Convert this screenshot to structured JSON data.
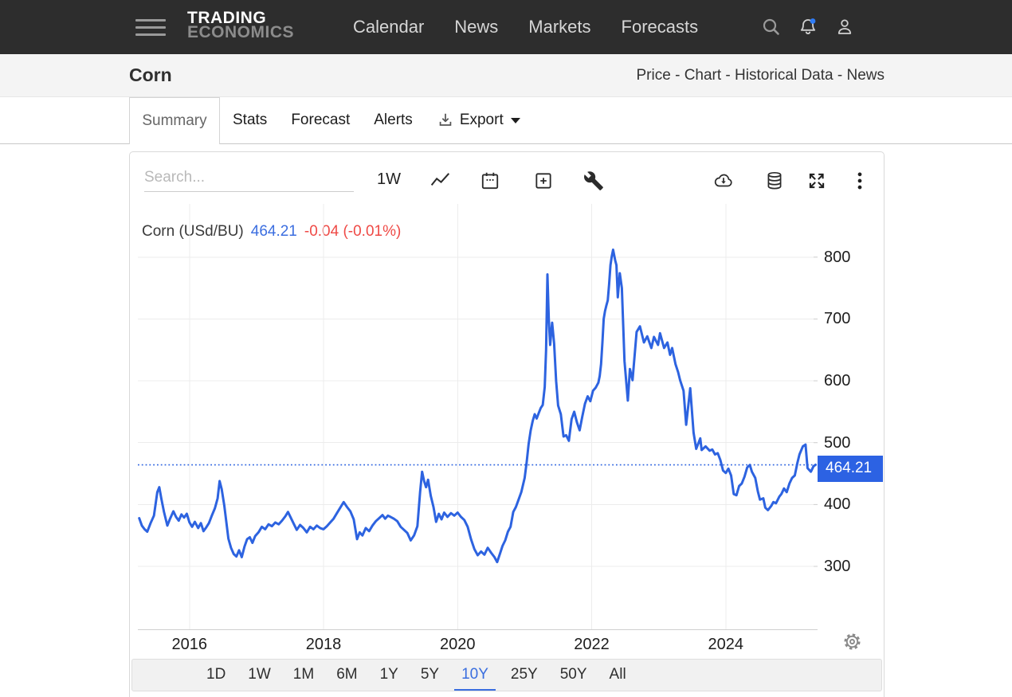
{
  "navbar": {
    "brand_line1": "TRADING",
    "brand_line2": "ECONOMICS",
    "items": [
      "Calendar",
      "News",
      "Markets",
      "Forecasts"
    ]
  },
  "subheader": {
    "title": "Corn",
    "links": [
      "Price",
      "Chart",
      "Historical Data",
      "News"
    ],
    "separator": " - "
  },
  "tabs": {
    "active": "Summary",
    "items": [
      "Stats",
      "Forecast",
      "Alerts"
    ],
    "export_label": "Export"
  },
  "toolbar": {
    "search_placeholder": "Search...",
    "interval_label": "1W"
  },
  "range_selector": {
    "options": [
      "1D",
      "1W",
      "1M",
      "6M",
      "1Y",
      "5Y",
      "10Y",
      "25Y",
      "50Y",
      "All"
    ],
    "active": "10Y"
  },
  "colors": {
    "line_blue": "#2d63e0",
    "badge_blue": "#2c62e3",
    "change_red": "#ef4a46",
    "grid": "#ececec",
    "axis": "#cfcfcf"
  },
  "chart_data": {
    "type": "line",
    "title": "Corn (USd/BU)",
    "last_price": "464.21",
    "change_text": "-0.04 (-0.01%)",
    "current_value": 464.21,
    "badge_label": "464.21",
    "x_ticks": [
      2016,
      2018,
      2020,
      2022,
      2024
    ],
    "y_ticks": [
      300,
      400,
      500,
      600,
      700,
      800
    ],
    "xlim": [
      2015.23,
      2025.37
    ],
    "ylim": [
      197,
      886
    ],
    "grid": true,
    "legend_position": "top-left",
    "series": [
      {
        "name": "Corn",
        "points": [
          [
            2015.25,
            378
          ],
          [
            2015.29,
            366
          ],
          [
            2015.33,
            360
          ],
          [
            2015.37,
            356
          ],
          [
            2015.42,
            370
          ],
          [
            2015.47,
            382
          ],
          [
            2015.52,
            420
          ],
          [
            2015.55,
            428
          ],
          [
            2015.58,
            410
          ],
          [
            2015.62,
            388
          ],
          [
            2015.67,
            366
          ],
          [
            2015.71,
            377
          ],
          [
            2015.76,
            389
          ],
          [
            2015.8,
            380
          ],
          [
            2015.84,
            374
          ],
          [
            2015.88,
            384
          ],
          [
            2015.92,
            379
          ],
          [
            2015.96,
            385
          ],
          [
            2016.0,
            371
          ],
          [
            2016.04,
            364
          ],
          [
            2016.08,
            372
          ],
          [
            2016.13,
            362
          ],
          [
            2016.17,
            370
          ],
          [
            2016.21,
            357
          ],
          [
            2016.25,
            363
          ],
          [
            2016.29,
            370
          ],
          [
            2016.33,
            381
          ],
          [
            2016.38,
            394
          ],
          [
            2016.42,
            410
          ],
          [
            2016.45,
            438
          ],
          [
            2016.48,
            425
          ],
          [
            2016.52,
            398
          ],
          [
            2016.55,
            372
          ],
          [
            2016.58,
            345
          ],
          [
            2016.62,
            330
          ],
          [
            2016.66,
            320
          ],
          [
            2016.7,
            316
          ],
          [
            2016.74,
            326
          ],
          [
            2016.78,
            315
          ],
          [
            2016.82,
            332
          ],
          [
            2016.86,
            344
          ],
          [
            2016.9,
            347
          ],
          [
            2016.94,
            338
          ],
          [
            2016.98,
            349
          ],
          [
            2017.03,
            355
          ],
          [
            2017.08,
            364
          ],
          [
            2017.13,
            360
          ],
          [
            2017.18,
            368
          ],
          [
            2017.23,
            365
          ],
          [
            2017.28,
            371
          ],
          [
            2017.33,
            368
          ],
          [
            2017.38,
            374
          ],
          [
            2017.43,
            381
          ],
          [
            2017.47,
            388
          ],
          [
            2017.51,
            379
          ],
          [
            2017.55,
            370
          ],
          [
            2017.6,
            359
          ],
          [
            2017.65,
            367
          ],
          [
            2017.7,
            362
          ],
          [
            2017.75,
            355
          ],
          [
            2017.8,
            364
          ],
          [
            2017.85,
            360
          ],
          [
            2017.9,
            366
          ],
          [
            2017.95,
            362
          ],
          [
            2018.0,
            360
          ],
          [
            2018.05,
            365
          ],
          [
            2018.1,
            371
          ],
          [
            2018.15,
            377
          ],
          [
            2018.2,
            386
          ],
          [
            2018.25,
            395
          ],
          [
            2018.3,
            404
          ],
          [
            2018.35,
            396
          ],
          [
            2018.4,
            389
          ],
          [
            2018.45,
            376
          ],
          [
            2018.5,
            344
          ],
          [
            2018.54,
            355
          ],
          [
            2018.58,
            350
          ],
          [
            2018.63,
            362
          ],
          [
            2018.68,
            357
          ],
          [
            2018.73,
            366
          ],
          [
            2018.78,
            373
          ],
          [
            2018.83,
            378
          ],
          [
            2018.88,
            383
          ],
          [
            2018.92,
            377
          ],
          [
            2018.96,
            382
          ],
          [
            2019.0,
            380
          ],
          [
            2019.05,
            377
          ],
          [
            2019.1,
            373
          ],
          [
            2019.15,
            364
          ],
          [
            2019.2,
            359
          ],
          [
            2019.25,
            354
          ],
          [
            2019.3,
            342
          ],
          [
            2019.35,
            350
          ],
          [
            2019.4,
            365
          ],
          [
            2019.44,
            420
          ],
          [
            2019.47,
            453
          ],
          [
            2019.5,
            438
          ],
          [
            2019.53,
            428
          ],
          [
            2019.56,
            440
          ],
          [
            2019.6,
            414
          ],
          [
            2019.64,
            396
          ],
          [
            2019.68,
            372
          ],
          [
            2019.72,
            385
          ],
          [
            2019.76,
            376
          ],
          [
            2019.8,
            387
          ],
          [
            2019.85,
            380
          ],
          [
            2019.9,
            386
          ],
          [
            2019.95,
            382
          ],
          [
            2020.0,
            387
          ],
          [
            2020.05,
            380
          ],
          [
            2020.1,
            375
          ],
          [
            2020.15,
            364
          ],
          [
            2020.2,
            344
          ],
          [
            2020.25,
            328
          ],
          [
            2020.3,
            318
          ],
          [
            2020.35,
            324
          ],
          [
            2020.4,
            319
          ],
          [
            2020.45,
            330
          ],
          [
            2020.5,
            322
          ],
          [
            2020.55,
            315
          ],
          [
            2020.59,
            307
          ],
          [
            2020.63,
            320
          ],
          [
            2020.67,
            333
          ],
          [
            2020.71,
            342
          ],
          [
            2020.75,
            356
          ],
          [
            2020.79,
            364
          ],
          [
            2020.83,
            388
          ],
          [
            2020.87,
            396
          ],
          [
            2020.91,
            408
          ],
          [
            2020.95,
            420
          ],
          [
            2021.0,
            443
          ],
          [
            2021.03,
            468
          ],
          [
            2021.06,
            498
          ],
          [
            2021.09,
            520
          ],
          [
            2021.12,
            535
          ],
          [
            2021.15,
            546
          ],
          [
            2021.18,
            539
          ],
          [
            2021.21,
            548
          ],
          [
            2021.24,
            556
          ],
          [
            2021.27,
            561
          ],
          [
            2021.3,
            590
          ],
          [
            2021.32,
            650
          ],
          [
            2021.34,
            772
          ],
          [
            2021.36,
            700
          ],
          [
            2021.38,
            658
          ],
          [
            2021.41,
            694
          ],
          [
            2021.44,
            660
          ],
          [
            2021.47,
            600
          ],
          [
            2021.5,
            560
          ],
          [
            2021.54,
            546
          ],
          [
            2021.58,
            510
          ],
          [
            2021.62,
            512
          ],
          [
            2021.66,
            503
          ],
          [
            2021.7,
            538
          ],
          [
            2021.74,
            550
          ],
          [
            2021.78,
            533
          ],
          [
            2021.82,
            520
          ],
          [
            2021.86,
            542
          ],
          [
            2021.9,
            563
          ],
          [
            2021.94,
            575
          ],
          [
            2021.98,
            567
          ],
          [
            2022.02,
            584
          ],
          [
            2022.06,
            589
          ],
          [
            2022.1,
            597
          ],
          [
            2022.12,
            608
          ],
          [
            2022.14,
            627
          ],
          [
            2022.16,
            662
          ],
          [
            2022.18,
            700
          ],
          [
            2022.2,
            713
          ],
          [
            2022.22,
            722
          ],
          [
            2022.24,
            730
          ],
          [
            2022.26,
            756
          ],
          [
            2022.28,
            787
          ],
          [
            2022.3,
            801
          ],
          [
            2022.32,
            812
          ],
          [
            2022.35,
            795
          ],
          [
            2022.37,
            787
          ],
          [
            2022.39,
            735
          ],
          [
            2022.42,
            774
          ],
          [
            2022.45,
            750
          ],
          [
            2022.49,
            632
          ],
          [
            2022.54,
            568
          ],
          [
            2022.57,
            619
          ],
          [
            2022.61,
            601
          ],
          [
            2022.67,
            679
          ],
          [
            2022.72,
            688
          ],
          [
            2022.78,
            662
          ],
          [
            2022.83,
            672
          ],
          [
            2022.89,
            653
          ],
          [
            2022.93,
            671
          ],
          [
            2022.99,
            658
          ],
          [
            2023.02,
            677
          ],
          [
            2023.08,
            653
          ],
          [
            2023.13,
            662
          ],
          [
            2023.17,
            642
          ],
          [
            2023.2,
            653
          ],
          [
            2023.25,
            627
          ],
          [
            2023.29,
            614
          ],
          [
            2023.32,
            601
          ],
          [
            2023.37,
            584
          ],
          [
            2023.41,
            529
          ],
          [
            2023.47,
            588
          ],
          [
            2023.52,
            516
          ],
          [
            2023.56,
            490
          ],
          [
            2023.62,
            507
          ],
          [
            2023.64,
            488
          ],
          [
            2023.7,
            494
          ],
          [
            2023.76,
            487
          ],
          [
            2023.8,
            489
          ],
          [
            2023.84,
            481
          ],
          [
            2023.88,
            483
          ],
          [
            2023.92,
            472
          ],
          [
            2023.96,
            455
          ],
          [
            2024.0,
            451
          ],
          [
            2024.04,
            458
          ],
          [
            2024.08,
            447
          ],
          [
            2024.12,
            417
          ],
          [
            2024.16,
            415
          ],
          [
            2024.2,
            430
          ],
          [
            2024.24,
            434
          ],
          [
            2024.28,
            445
          ],
          [
            2024.32,
            460
          ],
          [
            2024.36,
            464
          ],
          [
            2024.39,
            453
          ],
          [
            2024.44,
            443
          ],
          [
            2024.48,
            421
          ],
          [
            2024.51,
            408
          ],
          [
            2024.56,
            410
          ],
          [
            2024.59,
            395
          ],
          [
            2024.63,
            391
          ],
          [
            2024.68,
            398
          ],
          [
            2024.71,
            404
          ],
          [
            2024.75,
            402
          ],
          [
            2024.8,
            413
          ],
          [
            2024.83,
            417
          ],
          [
            2024.87,
            426
          ],
          [
            2024.91,
            420
          ],
          [
            2024.95,
            434
          ],
          [
            2024.99,
            443
          ],
          [
            2025.03,
            447
          ],
          [
            2025.07,
            468
          ],
          [
            2025.1,
            481
          ],
          [
            2025.15,
            494
          ],
          [
            2025.19,
            497
          ],
          [
            2025.22,
            459
          ],
          [
            2025.27,
            453
          ],
          [
            2025.31,
            462
          ],
          [
            2025.34,
            464.21
          ]
        ]
      }
    ]
  }
}
